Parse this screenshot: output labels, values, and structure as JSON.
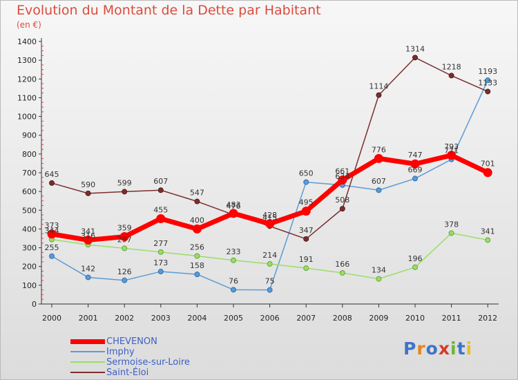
{
  "title": "Evolution du Montant de la Dette par Habitant",
  "unit": "(en €)",
  "logo": {
    "text": "Proxiti",
    "colors": [
      "#3e74c8",
      "#e8821e",
      "#3e74c8",
      "#d53a2b",
      "#6bb537",
      "#3e74c8",
      "#e8c21e"
    ]
  },
  "chart_data": {
    "type": "line",
    "x": [
      "2000",
      "2001",
      "2002",
      "2003",
      "2004",
      "2005",
      "2006",
      "2007",
      "2008",
      "2009",
      "2010",
      "2011",
      "2012"
    ],
    "y_ticks": [
      "0",
      "100",
      "200",
      "300",
      "400",
      "500",
      "600",
      "700",
      "800",
      "900",
      "1000",
      "1100",
      "1200",
      "1300",
      "1400"
    ],
    "ylim": [
      0,
      1400
    ],
    "grid": false,
    "legend_position": "bottom-left",
    "series": [
      {
        "name": "CHEVENON",
        "color": "#ff0000",
        "values": [
          373,
          341,
          359,
          455,
          400,
          483,
          428,
          495,
          661,
          776,
          747,
          793,
          701
        ],
        "labels": [
          "373",
          "341",
          "359",
          "455",
          "400",
          "483",
          "428",
          "495",
          "661",
          "776",
          "747",
          "793",
          "701"
        ]
      },
      {
        "name": "Imphy",
        "color": "#5b9bd5",
        "values": [
          255,
          142,
          126,
          173,
          158,
          76,
          75,
          650,
          634,
          607,
          669,
          771,
          1193
        ],
        "labels": [
          "255",
          "142",
          "126",
          "173",
          "158",
          "76",
          "75",
          "650",
          "634",
          "607",
          "669",
          "771",
          "1193"
        ]
      },
      {
        "name": "Sermoise-sur-Loire",
        "color": "#99dd66",
        "values": [
          344,
          316,
          297,
          277,
          256,
          233,
          214,
          191,
          166,
          134,
          196,
          378,
          341
        ],
        "labels": [
          "344",
          "316",
          "297",
          "277",
          "256",
          "233",
          "214",
          "191",
          "166",
          "134",
          "196",
          "378",
          "341"
        ]
      },
      {
        "name": "Saint-Éloi",
        "color": "#7a2e2e",
        "values": [
          645,
          590,
          599,
          607,
          547,
          476,
          415,
          347,
          508,
          1114,
          1314,
          1218,
          1133
        ],
        "labels": [
          "645",
          "590",
          "599",
          "607",
          "547",
          "476",
          "415",
          "347",
          "508",
          "1114",
          "1314",
          "1218",
          "1133"
        ]
      }
    ]
  }
}
